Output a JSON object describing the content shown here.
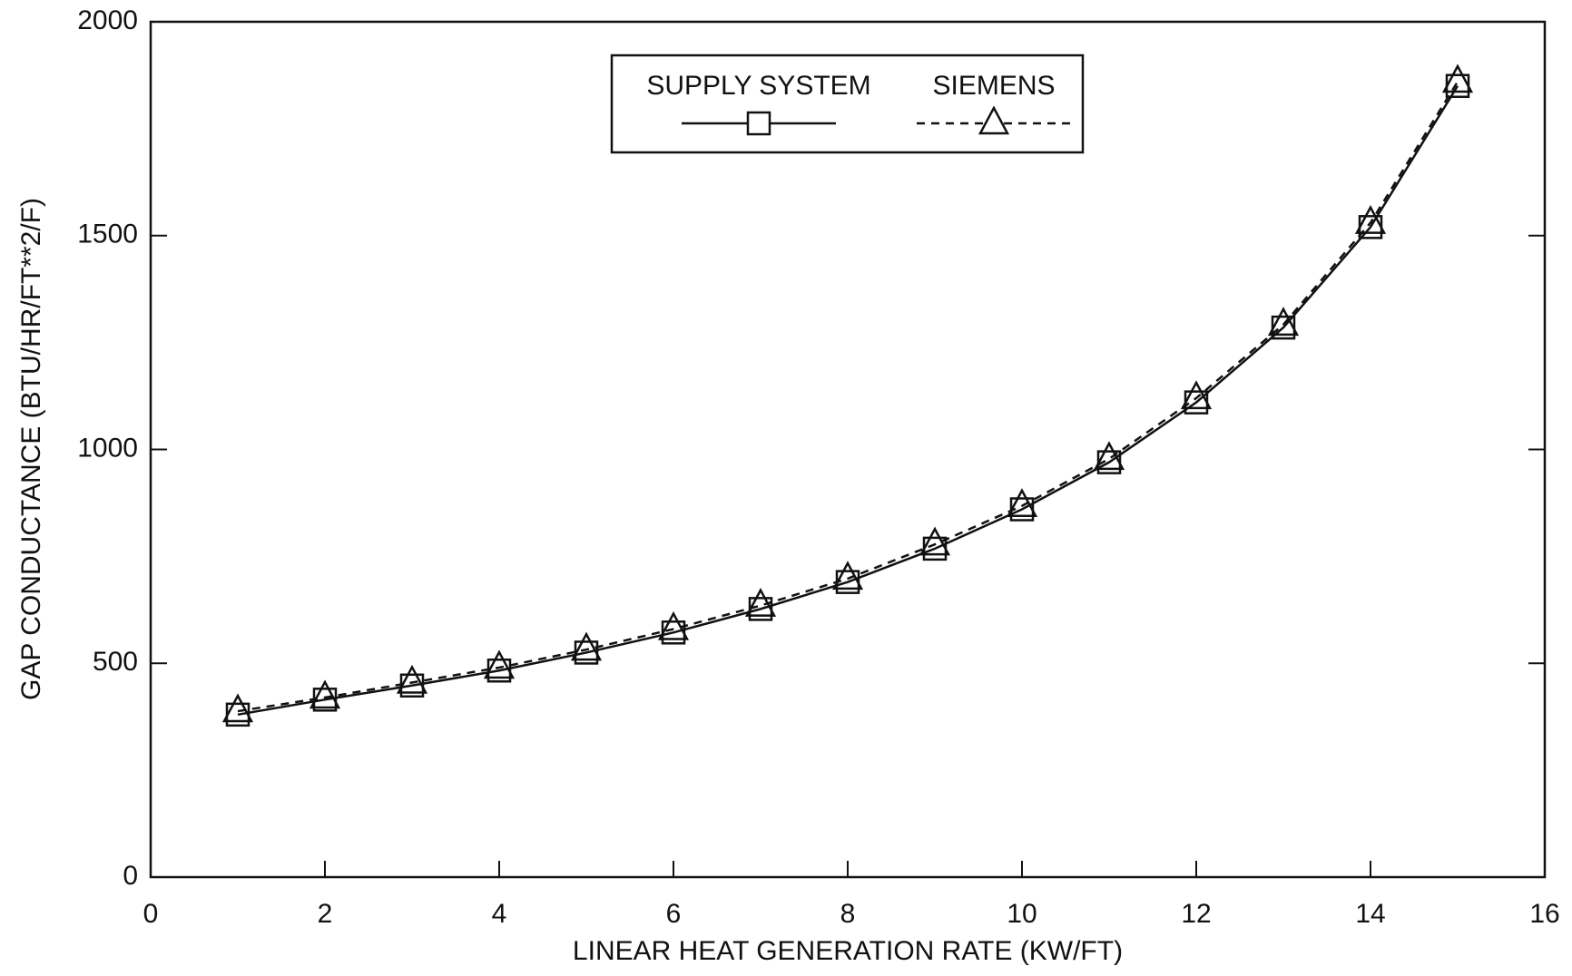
{
  "chart_data": {
    "type": "line",
    "xlabel": "LINEAR HEAT GENERATION RATE (KW/FT)",
    "ylabel": "GAP CONDUCTANCE (BTU/HR/FT**2/F)",
    "x": [
      1,
      2,
      3,
      4,
      5,
      6,
      7,
      8,
      9,
      10,
      11,
      12,
      13,
      14,
      15
    ],
    "series": [
      {
        "name": "SUPPLY SYSTEM",
        "color": "#111111",
        "line_style": "solid",
        "marker": "square",
        "values": [
          380,
          415,
          448,
          483,
          525,
          572,
          627,
          690,
          768,
          860,
          970,
          1110,
          1285,
          1520,
          1850
        ]
      },
      {
        "name": "SIEMENS",
        "color": "#111111",
        "line_style": "dashed",
        "marker": "triangle",
        "values": [
          388,
          420,
          455,
          490,
          532,
          580,
          635,
          698,
          778,
          868,
          978,
          1120,
          1292,
          1530,
          1860
        ]
      }
    ],
    "xlim": [
      0,
      16
    ],
    "xticks": [
      0,
      2,
      4,
      6,
      8,
      10,
      12,
      14,
      16
    ],
    "ylim": [
      0,
      2000
    ],
    "yticks": [
      0,
      500,
      1000,
      1500,
      2000
    ],
    "legend": "top"
  }
}
